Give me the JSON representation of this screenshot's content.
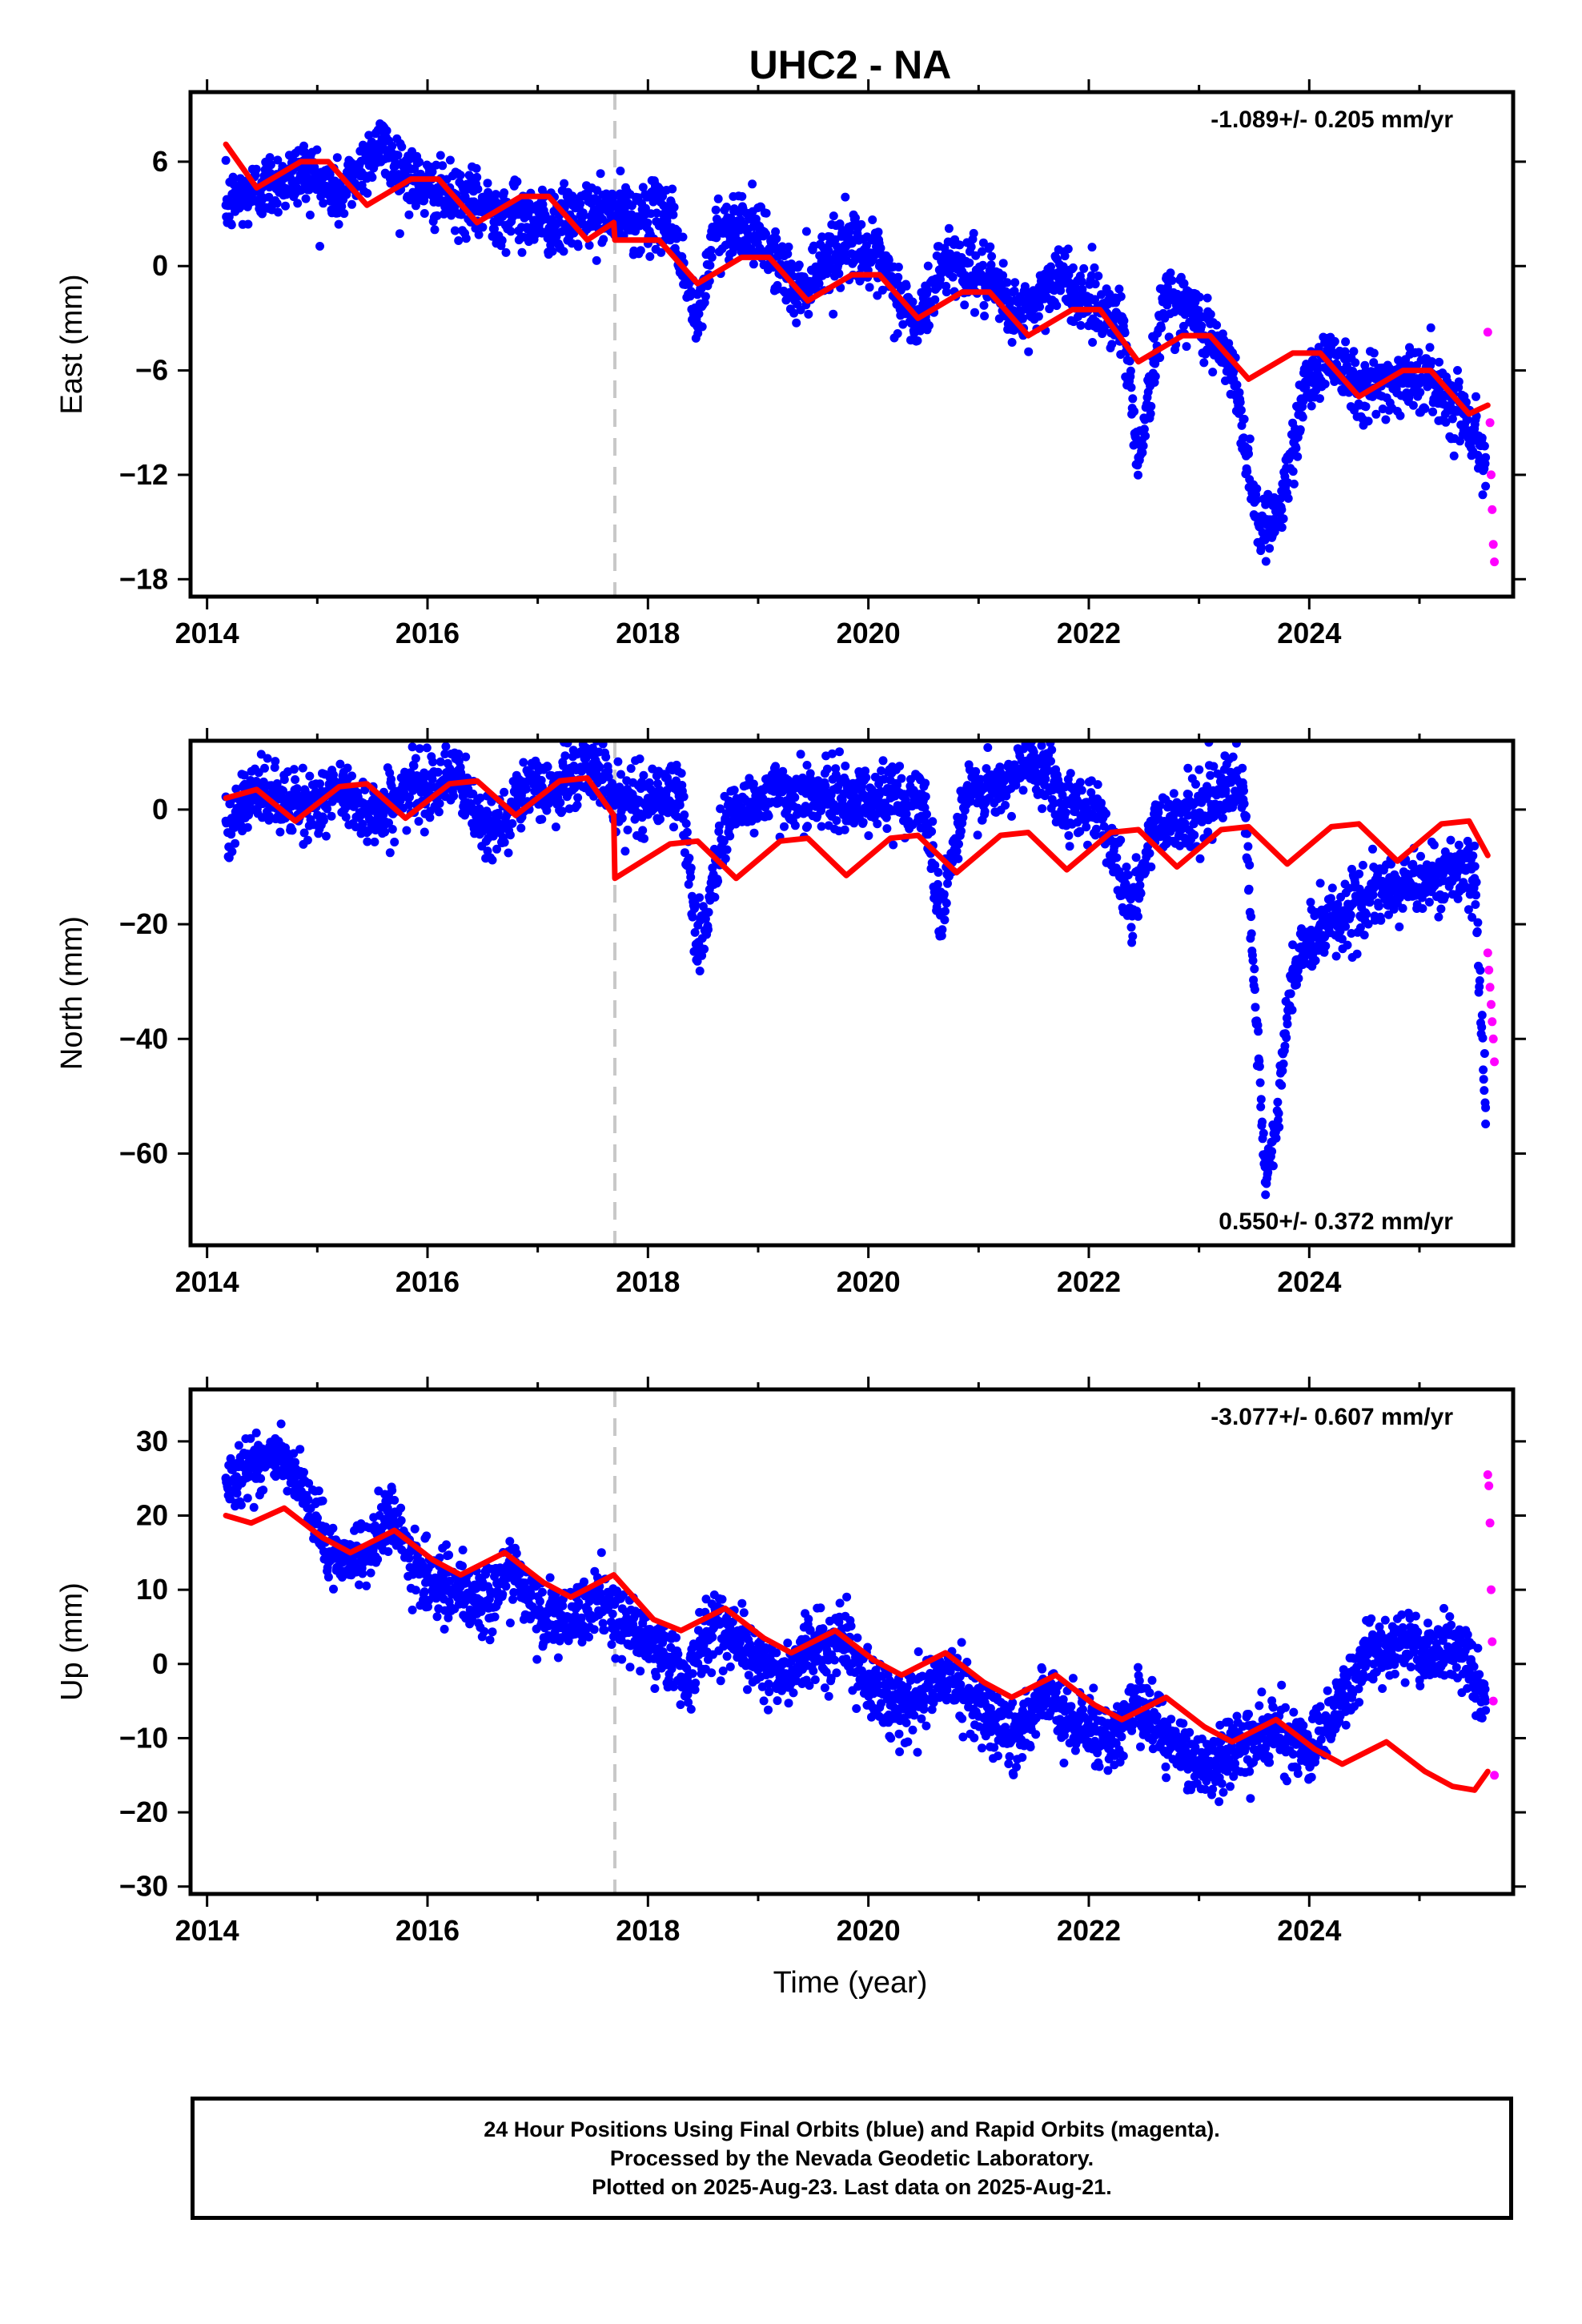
{
  "title": "UHC2 - NA",
  "xlabel": "Time (year)",
  "colors": {
    "final": "#0000ff",
    "rapid": "#ff00ff",
    "model": "#ff0000",
    "offset_line": "#c8c8c8"
  },
  "footer": {
    "line1": "24 Hour Positions Using Final Orbits (blue) and Rapid Orbits (magenta).",
    "line2": "Processed by the Nevada Geodetic Laboratory.",
    "line3": "Plotted on 2025-Aug-23. Last data on 2025-Aug-21."
  },
  "chart_data": [
    {
      "type": "scatter",
      "ylabel": "East (mm)",
      "rate_label": "-1.089+/- 0.205 mm/yr",
      "rate_position": "top-right",
      "xlim": [
        2013.85,
        2025.85
      ],
      "ylim": [
        -19,
        10
      ],
      "xticks": [
        "2014",
        "2016",
        "2018",
        "2020",
        "2022",
        "2024"
      ],
      "yticks": [
        "6",
        "0",
        "-6",
        "-12",
        "-18"
      ],
      "offset_epoch": 2017.7,
      "series": [
        {
          "role": "final",
          "x": [
            2014.17,
            2014.5,
            2014.9,
            2015.2,
            2015.55,
            2015.95,
            2016.4,
            2016.8,
            2017.2,
            2017.5,
            2017.9,
            2018.2,
            2018.45,
            2018.6,
            2018.85,
            2019.1,
            2019.35,
            2019.6,
            2019.85,
            2020.1,
            2020.45,
            2020.7,
            2021.0,
            2021.4,
            2021.7,
            2022.0,
            2022.3,
            2022.45,
            2022.7,
            2023.0,
            2023.3,
            2023.55,
            2023.75,
            2023.95,
            2024.2,
            2024.5,
            2024.8,
            2025.1,
            2025.4,
            2025.6
          ],
          "y": [
            3.5,
            4.5,
            5.5,
            4.0,
            7.0,
            4.5,
            3.5,
            3.0,
            2.5,
            3.0,
            2.8,
            3.0,
            -3.5,
            2.0,
            2.5,
            1.0,
            -1.5,
            0.5,
            1.5,
            0.0,
            -3.5,
            0.5,
            -0.5,
            -3.0,
            -0.5,
            -2.0,
            -3.0,
            -11.0,
            -1.5,
            -3.0,
            -6.0,
            -15.0,
            -14.0,
            -7.0,
            -5.0,
            -7.0,
            -6.5,
            -6.5,
            -8.5,
            -11.0
          ]
        },
        {
          "role": "rapid",
          "x": [
            2025.62,
            2025.64,
            2025.65,
            2025.66,
            2025.67,
            2025.68
          ],
          "y": [
            -3.8,
            -9.0,
            -12.0,
            -14.0,
            -16.0,
            -17.0
          ]
        },
        {
          "role": "model",
          "x": [
            2014.17,
            2014.45,
            2014.85,
            2015.1,
            2015.45,
            2015.85,
            2016.1,
            2016.45,
            2016.85,
            2017.1,
            2017.45,
            2017.69,
            2017.7,
            2018.1,
            2018.45,
            2018.85,
            2019.1,
            2019.45,
            2019.85,
            2020.1,
            2020.45,
            2020.85,
            2021.1,
            2021.45,
            2021.85,
            2022.1,
            2022.45,
            2022.85,
            2023.1,
            2023.45,
            2023.85,
            2024.1,
            2024.45,
            2024.85,
            2025.1,
            2025.45,
            2025.62
          ],
          "y": [
            7.0,
            4.5,
            6.0,
            6.0,
            3.5,
            5.0,
            5.0,
            2.5,
            4.0,
            4.0,
            1.5,
            2.5,
            1.5,
            1.5,
            -1.0,
            0.5,
            0.5,
            -2.0,
            -0.5,
            -0.5,
            -3.0,
            -1.5,
            -1.5,
            -4.0,
            -2.5,
            -2.5,
            -5.5,
            -4.0,
            -4.0,
            -6.5,
            -5.0,
            -5.0,
            -7.5,
            -6.0,
            -6.0,
            -8.5,
            -8.0
          ]
        }
      ]
    },
    {
      "type": "scatter",
      "ylabel": "North (mm)",
      "rate_label": "0.550+/- 0.372 mm/yr",
      "rate_position": "bottom-right",
      "xlim": [
        2013.85,
        2025.85
      ],
      "ylim": [
        -76,
        12
      ],
      "xticks": [
        "2014",
        "2016",
        "2018",
        "2020",
        "2022",
        "2024"
      ],
      "yticks": [
        "0",
        "-20",
        "-40",
        "-60"
      ],
      "offset_epoch": 2017.7,
      "series": [
        {
          "role": "final",
          "x": [
            2014.17,
            2014.5,
            2014.85,
            2015.2,
            2015.55,
            2015.9,
            2016.25,
            2016.55,
            2016.85,
            2017.2,
            2017.5,
            2017.75,
            2018.0,
            2018.3,
            2018.45,
            2018.7,
            2019.0,
            2019.3,
            2019.6,
            2019.9,
            2020.2,
            2020.5,
            2020.65,
            2020.9,
            2021.2,
            2021.5,
            2021.8,
            2022.1,
            2022.4,
            2022.6,
            2022.9,
            2023.2,
            2023.4,
            2023.6,
            2023.7,
            2023.85,
            2024.1,
            2024.5,
            2024.9,
            2025.3,
            2025.5,
            2025.6
          ],
          "y": [
            -2.0,
            3.0,
            0.0,
            3.0,
            -1.0,
            4.0,
            6.0,
            -5.0,
            3.0,
            4.0,
            8.0,
            1.0,
            2.0,
            3.0,
            -25.0,
            -2.0,
            2.0,
            3.0,
            2.0,
            2.0,
            2.0,
            2.0,
            -18.0,
            3.0,
            3.0,
            10.0,
            1.0,
            0.0,
            -18.0,
            -2.0,
            -1.0,
            3.0,
            4.0,
            -65.0,
            -55.0,
            -28.0,
            -20.0,
            -16.0,
            -13.0,
            -11.0,
            -12.0,
            -52.0
          ]
        },
        {
          "role": "rapid",
          "x": [
            2025.62,
            2025.63,
            2025.64,
            2025.65,
            2025.66,
            2025.67,
            2025.68
          ],
          "y": [
            -25.0,
            -28.0,
            -31.0,
            -34.0,
            -37.0,
            -40.0,
            -44.0
          ]
        },
        {
          "role": "model",
          "x": [
            2014.17,
            2014.45,
            2014.8,
            2015.2,
            2015.45,
            2015.8,
            2016.2,
            2016.45,
            2016.8,
            2017.2,
            2017.45,
            2017.69,
            2017.7,
            2018.2,
            2018.45,
            2018.8,
            2019.2,
            2019.45,
            2019.8,
            2020.2,
            2020.45,
            2020.8,
            2021.2,
            2021.45,
            2021.8,
            2022.2,
            2022.45,
            2022.8,
            2023.2,
            2023.45,
            2023.8,
            2024.2,
            2024.45,
            2024.8,
            2025.2,
            2025.45,
            2025.62
          ],
          "y": [
            2.0,
            3.5,
            -2.0,
            4.0,
            4.5,
            -1.5,
            4.5,
            5.0,
            -1.0,
            5.0,
            5.5,
            -1.0,
            -12.0,
            -6.0,
            -5.5,
            -12.0,
            -5.5,
            -5.0,
            -11.5,
            -5.0,
            -4.5,
            -11.0,
            -4.5,
            -4.0,
            -10.5,
            -4.0,
            -3.5,
            -10.0,
            -3.5,
            -3.0,
            -9.5,
            -3.0,
            -2.5,
            -9.0,
            -2.5,
            -2.0,
            -8.0
          ]
        }
      ]
    },
    {
      "type": "scatter",
      "ylabel": "Up (mm)",
      "rate_label": "-3.077+/- 0.607 mm/yr",
      "rate_position": "top-right",
      "xlim": [
        2013.85,
        2025.85
      ],
      "ylim": [
        -31,
        37
      ],
      "xticks": [
        "2014",
        "2016",
        "2018",
        "2020",
        "2022",
        "2024"
      ],
      "yticks": [
        "30",
        "20",
        "10",
        "0",
        "-10",
        "-20",
        "-30"
      ],
      "offset_epoch": 2017.7,
      "series": [
        {
          "role": "final",
          "x": [
            2014.17,
            2014.4,
            2014.65,
            2014.9,
            2015.1,
            2015.4,
            2015.65,
            2015.9,
            2016.2,
            2016.5,
            2016.75,
            2017.0,
            2017.3,
            2017.55,
            2017.8,
            2018.1,
            2018.35,
            2018.6,
            2018.9,
            2019.2,
            2019.45,
            2019.75,
            2020.0,
            2020.3,
            2020.55,
            2020.8,
            2021.1,
            2021.35,
            2021.6,
            2021.9,
            2022.2,
            2022.45,
            2022.7,
            2023.0,
            2023.25,
            2023.5,
            2023.7,
            2024.0,
            2024.3,
            2024.55,
            2024.8,
            2025.1,
            2025.35,
            2025.6
          ],
          "y": [
            25.0,
            27.0,
            28.0,
            22.0,
            15.0,
            14.0,
            20.0,
            13.0,
            10.0,
            8.0,
            13.0,
            7.0,
            5.0,
            9.0,
            5.0,
            2.0,
            -2.0,
            6.0,
            2.0,
            -2.0,
            1.0,
            4.0,
            -3.0,
            -6.0,
            -3.0,
            -2.0,
            -7.0,
            -10.0,
            -4.0,
            -8.0,
            -10.0,
            -5.0,
            -10.0,
            -14.0,
            -12.0,
            -10.0,
            -9.0,
            -12.0,
            -5.0,
            2.0,
            3.0,
            1.0,
            2.0,
            -5.0
          ]
        },
        {
          "role": "rapid",
          "x": [
            2025.62,
            2025.63,
            2025.64,
            2025.65,
            2025.66,
            2025.67,
            2025.68
          ],
          "y": [
            25.5,
            24.0,
            19.0,
            10.0,
            3.0,
            -5.0,
            -15.0
          ]
        },
        {
          "role": "model",
          "x": [
            2014.17,
            2014.4,
            2014.7,
            2015.05,
            2015.3,
            2015.7,
            2016.05,
            2016.3,
            2016.7,
            2017.05,
            2017.3,
            2017.69,
            2018.05,
            2018.3,
            2018.7,
            2019.05,
            2019.3,
            2019.7,
            2020.05,
            2020.3,
            2020.7,
            2021.05,
            2021.3,
            2021.7,
            2022.05,
            2022.3,
            2022.7,
            2023.05,
            2023.3,
            2023.7,
            2024.05,
            2024.3,
            2024.7,
            2025.05,
            2025.3,
            2025.5,
            2025.62
          ],
          "y": [
            20.0,
            19.0,
            21.0,
            17.0,
            15.0,
            18.0,
            14.0,
            12.0,
            15.0,
            11.0,
            9.0,
            12.0,
            6.0,
            4.5,
            7.5,
            3.5,
            1.5,
            4.5,
            0.5,
            -1.5,
            1.5,
            -2.5,
            -4.5,
            -1.5,
            -5.5,
            -7.5,
            -4.5,
            -8.5,
            -10.5,
            -7.5,
            -11.5,
            -13.5,
            -10.5,
            -14.5,
            -16.5,
            -17.0,
            -14.5
          ]
        }
      ]
    }
  ]
}
